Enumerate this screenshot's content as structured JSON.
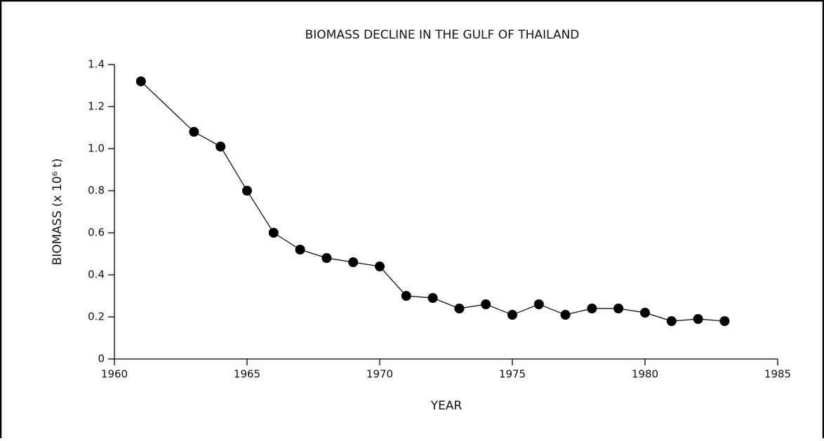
{
  "chart_data": {
    "type": "line",
    "title": "BIOMASS DECLINE IN THE GULF OF THAILAND",
    "x_label": "YEAR",
    "y_label": "BIOMASS (x 10⁶ t)",
    "x": [
      1961,
      1963,
      1964,
      1965,
      1966,
      1967,
      1968,
      1969,
      1970,
      1971,
      1972,
      1973,
      1974,
      1975,
      1976,
      1977,
      1978,
      1979,
      1980,
      1981,
      1982,
      1983
    ],
    "y": [
      1.32,
      1.08,
      1.01,
      0.8,
      0.6,
      0.52,
      0.48,
      0.46,
      0.44,
      0.3,
      0.29,
      0.24,
      0.26,
      0.21,
      0.26,
      0.21,
      0.24,
      0.24,
      0.22,
      0.18,
      0.19,
      0.18
    ],
    "color": "#000000",
    "xlim": [
      1960,
      1985
    ],
    "xticks": [
      1960,
      1965,
      1970,
      1975,
      1980,
      1985
    ],
    "ylim": [
      0,
      1.4
    ],
    "yticks": [
      0,
      0.2,
      0.4,
      0.6,
      0.8,
      {
        "value": 1,
        "label": "1.0"
      },
      1.2,
      1.4
    ],
    "grid": false
  }
}
